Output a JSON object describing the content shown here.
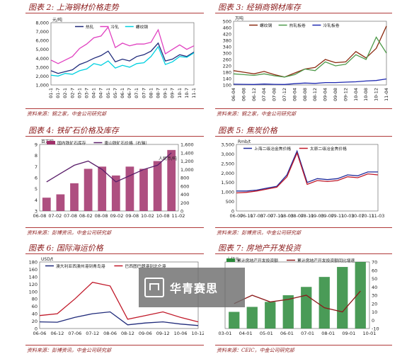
{
  "panels": [
    {
      "title": "图表 2: 上海钢材价格走势",
      "source": "资料来源：钢之家，中金公司研究部"
    },
    {
      "title": "图表 3: 经销商钢材库存",
      "source": "资料来源：钢之家，中金公司研究部"
    },
    {
      "title": "图表 4: 铁矿石价格及库存",
      "source": "资料来源：彭博资讯，中金公司研究部"
    },
    {
      "title": "图表 5: 焦炭价格",
      "source": "资料来源：彭博资讯，中金公司研究部"
    },
    {
      "title": "图表 6: 国际海运价格",
      "source": "资料来源：彭博资讯，中金公司研究部"
    },
    {
      "title": "图表 7: 房地产开发投资",
      "source": "资料来源：CEIC，中金公司研究部"
    }
  ],
  "watermark": "华青赛思",
  "chart_data": [
    {
      "type": "line",
      "unit": "元/吨",
      "x": [
        "01-1",
        "01-7",
        "02-1",
        "02-7",
        "03-1",
        "03-7",
        "04-1",
        "04-7",
        "05-1",
        "05-7",
        "06-1",
        "06-7",
        "07-1",
        "07-7",
        "08-1",
        "08-7",
        "09-1",
        "09-7",
        "10-1",
        "10-7",
        "11-1"
      ],
      "ylim": [
        1000,
        8000
      ],
      "yticks": [
        1000,
        2000,
        3000,
        4000,
        5000,
        6000,
        7000,
        8000
      ],
      "series": [
        {
          "name": "热轧",
          "color": "#1f2a7a",
          "values": [
            2600,
            2300,
            2500,
            2700,
            3300,
            3600,
            4000,
            4300,
            4800,
            3600,
            3900,
            3700,
            4200,
            4400,
            4800,
            5700,
            3700,
            3900,
            4400,
            4200,
            4700
          ]
        },
        {
          "name": "冷轧",
          "color": "#e040c0",
          "values": [
            3800,
            3400,
            3800,
            4200,
            5100,
            5600,
            6300,
            6500,
            7500,
            5200,
            5700,
            5400,
            5600,
            5600,
            5800,
            7200,
            4500,
            5000,
            5500,
            5000,
            5400
          ]
        },
        {
          "name": "螺纹钢",
          "color": "#00d0e0",
          "values": [
            2100,
            2000,
            2300,
            2200,
            2600,
            2800,
            3400,
            3200,
            3700,
            2900,
            3200,
            3000,
            3400,
            3500,
            4200,
            5300,
            3300,
            3600,
            4200,
            4100,
            4600
          ]
        }
      ]
    },
    {
      "type": "line",
      "unit": "万吨",
      "x": [
        "06-04",
        "06-08",
        "06-12",
        "07-04",
        "07-08",
        "07-12",
        "08-04",
        "08-08",
        "08-12",
        "09-04",
        "09-08",
        "09-12",
        "10-04",
        "10-08",
        "10-12",
        "11-04"
      ],
      "ylim": [
        100,
        500
      ],
      "yticks": [
        100,
        140,
        180,
        220,
        260,
        300,
        340,
        380,
        420,
        460,
        500
      ],
      "series": [
        {
          "name": "螺纹钢",
          "color": "#8b2a10",
          "values": [
            190,
            180,
            170,
            185,
            165,
            150,
            175,
            200,
            210,
            260,
            240,
            245,
            310,
            270,
            330,
            470
          ]
        },
        {
          "name": "热轧板卷",
          "color": "#4e9a4a",
          "values": [
            170,
            165,
            160,
            170,
            158,
            150,
            165,
            200,
            190,
            245,
            220,
            230,
            290,
            260,
            400,
            300
          ]
        },
        {
          "name": "冷轧板卷",
          "color": "#1f2ab0",
          "values": [
            105,
            104,
            103,
            106,
            104,
            103,
            108,
            112,
            110,
            115,
            115,
            118,
            120,
            125,
            128,
            138
          ]
        }
      ]
    },
    {
      "type": "bar",
      "x": [
        "06-08",
        "07-02",
        "07-08",
        "08-02",
        "08-08",
        "09-02",
        "09-08",
        "10-02",
        "10-08",
        "11-02"
      ],
      "y_left": {
        "ylim": [
          3,
          9
        ],
        "yticks": [
          3,
          4,
          5,
          6,
          7,
          8,
          9
        ],
        "label": "百万吨"
      },
      "y_right": {
        "ylim": [
          0,
          1600
        ],
        "yticks": [
          0,
          200,
          400,
          600,
          800,
          1000,
          1200,
          1400,
          1600
        ],
        "label": "人民币/吨"
      },
      "series": [
        {
          "name": "国内铁矿石库存",
          "color": "#a0306a",
          "type": "bar",
          "axis": "left",
          "values": [
            4.2,
            4.5,
            5.5,
            6.8,
            7.0,
            6.2,
            7.0,
            6.8,
            7.5,
            8.5
          ]
        },
        {
          "name": "唐山铁矿石价格（右轴）",
          "color": "#5a1e6a",
          "type": "line",
          "axis": "right",
          "values": [
            700,
            900,
            1100,
            1200,
            1000,
            700,
            850,
            1000,
            1100,
            1400
          ]
        }
      ]
    },
    {
      "type": "line",
      "unit": "Rmb/t",
      "x": [
        "06-07",
        "06-11",
        "07-03",
        "07-07",
        "07-11",
        "08-03",
        "08-07",
        "08-11",
        "09-03",
        "09-07",
        "09-11",
        "10-03",
        "10-07",
        "10-11",
        "11-03"
      ],
      "ylim": [
        0,
        3500
      ],
      "yticks": [
        0,
        500,
        1000,
        1500,
        2000,
        2500,
        3000,
        3500
      ],
      "series": [
        {
          "name": "上海二级冶金焦价格",
          "color": "#1f2a9a",
          "values": [
            1050,
            1050,
            1100,
            1200,
            1300,
            1900,
            3150,
            1500,
            1700,
            1650,
            1700,
            1900,
            1850,
            2050,
            2050
          ]
        },
        {
          "name": "太原二级冶金焦价格",
          "color": "#c01828",
          "values": [
            950,
            980,
            1050,
            1150,
            1250,
            1800,
            3050,
            1400,
            1600,
            1550,
            1600,
            1800,
            1750,
            1950,
            1900
          ]
        }
      ]
    },
    {
      "type": "line",
      "unit": "USD/t",
      "x": [
        "06-06",
        "06-12",
        "07-06",
        "07-12",
        "08-06",
        "08-12",
        "09-06",
        "09-12",
        "10-06",
        "10-12"
      ],
      "ylim": [
        0,
        180
      ],
      "yticks": [
        0,
        20,
        40,
        60,
        80,
        100,
        120,
        140,
        160,
        180
      ],
      "series": [
        {
          "name": "澳大利亚西澳州港到青岛港",
          "color": "#1f2a7a",
          "values": [
            18,
            17,
            30,
            40,
            45,
            10,
            15,
            18,
            12,
            8
          ]
        },
        {
          "name": "巴西图巴朗港到北仑港",
          "color": "#c01828",
          "values": [
            35,
            40,
            80,
            125,
            115,
            25,
            35,
            45,
            30,
            18
          ]
        }
      ]
    },
    {
      "type": "bar",
      "x": [
        "03-01",
        "04-01",
        "05-01",
        "06-01",
        "07-01",
        "08-01",
        "09-01",
        "10-01"
      ],
      "y_left": {
        "ylim": [
          0,
          4000
        ],
        "label": "十亿元"
      },
      "y_right": {
        "ylim": [
          -10,
          70
        ],
        "yticks": [
          -10,
          0,
          10,
          20,
          30,
          40,
          50,
          60,
          70
        ]
      },
      "series": [
        {
          "name": "累计房地产开发投资额",
          "color": "#2a8a3a",
          "type": "bar",
          "axis": "left",
          "values": [
            1000,
            1300,
            1600,
            2000,
            2500,
            3100,
            3700,
            4000
          ]
        },
        {
          "name": "累计房地产开发投资额同比增速",
          "color": "#8b1a1a",
          "type": "line",
          "axis": "right",
          "values": [
            20,
            30,
            22,
            25,
            30,
            15,
            10,
            35
          ]
        }
      ]
    }
  ]
}
